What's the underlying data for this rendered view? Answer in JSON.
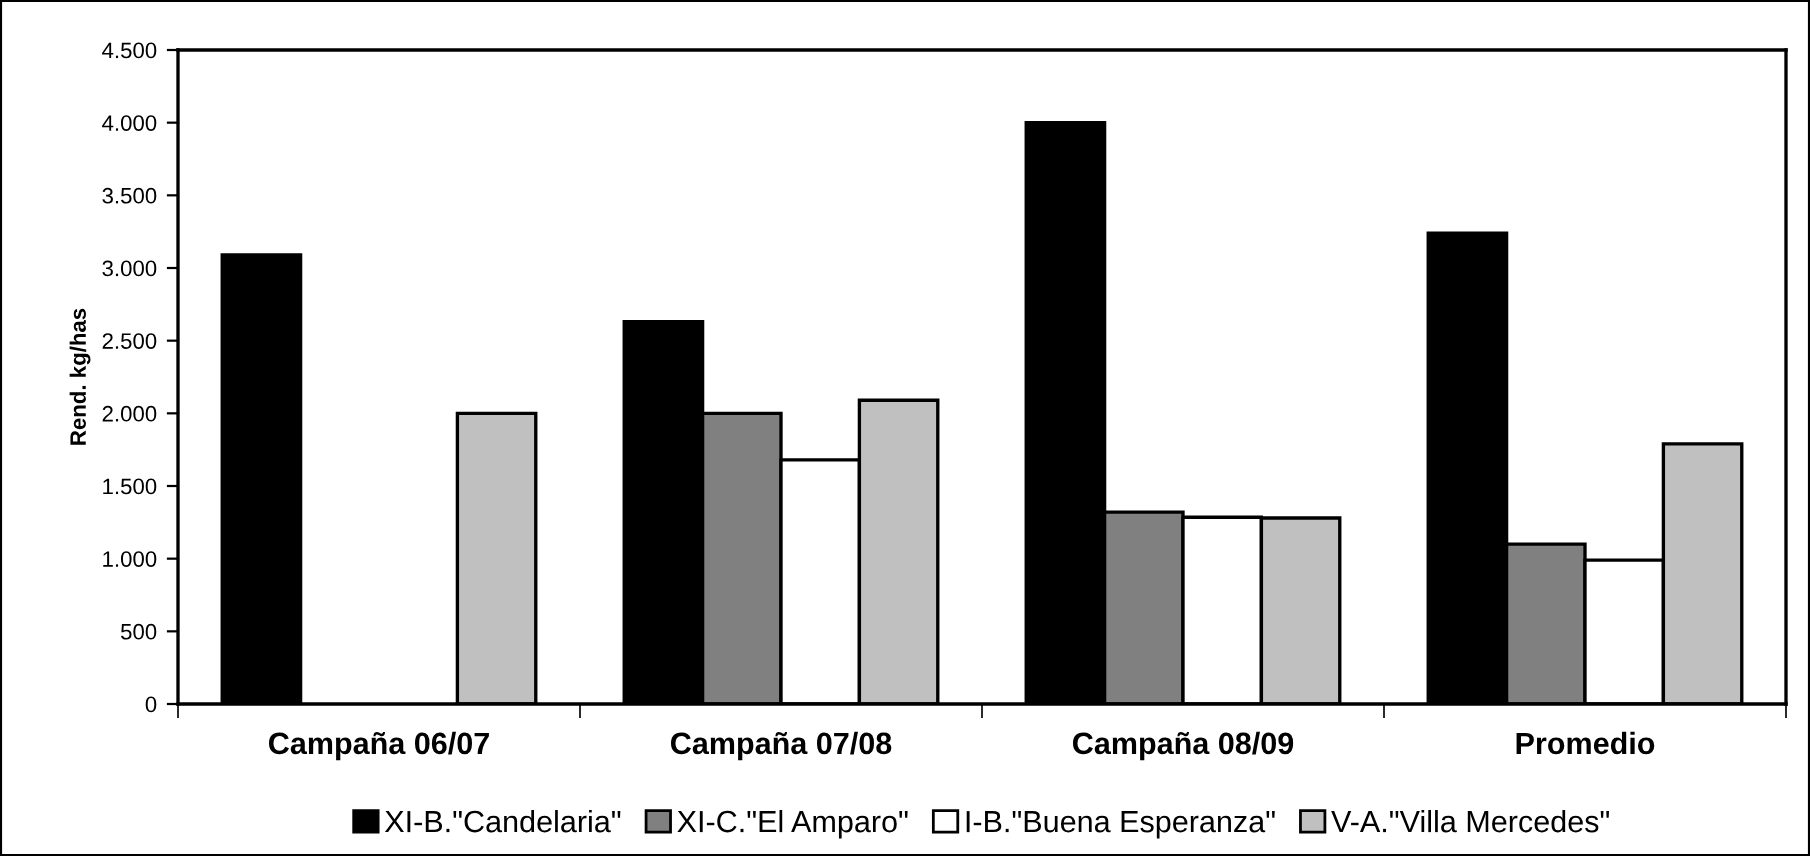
{
  "chart_data": {
    "type": "bar",
    "ylabel": "Rend. kg/has",
    "categories": [
      "Campaña 06/07",
      "Campaña 07/08",
      "Campaña 08/09",
      "Promedio"
    ],
    "series": [
      {
        "name": "XI-B.\"Candelaria\"",
        "color": "#000000",
        "values": [
          3090,
          2630,
          4000,
          3240
        ]
      },
      {
        "name": "XI-C.\"El Amparo\"",
        "color": "#808080",
        "values": [
          null,
          2000,
          1320,
          1100
        ]
      },
      {
        "name": "I-B.\"Buena Esperanza\"",
        "color": "#ffffff",
        "values": [
          null,
          1680,
          1285,
          990
        ]
      },
      {
        "name": "V-A.\"Villa Mercedes\"",
        "color": "#c0c0c0",
        "values": [
          2000,
          2090,
          1280,
          1790
        ]
      }
    ],
    "ylim": [
      0,
      4500
    ],
    "yticks": [
      {
        "value": 0,
        "label": "0"
      },
      {
        "value": 500,
        "label": "500"
      },
      {
        "value": 1000,
        "label": "1.000"
      },
      {
        "value": 1500,
        "label": "1.500"
      },
      {
        "value": 2000,
        "label": "2.000"
      },
      {
        "value": 2500,
        "label": "2.500"
      },
      {
        "value": 3000,
        "label": "3.000"
      },
      {
        "value": 3500,
        "label": "3.500"
      },
      {
        "value": 4000,
        "label": "4.000"
      },
      {
        "value": 4500,
        "label": "4.500"
      }
    ],
    "grid": false,
    "legend": "bottom"
  }
}
